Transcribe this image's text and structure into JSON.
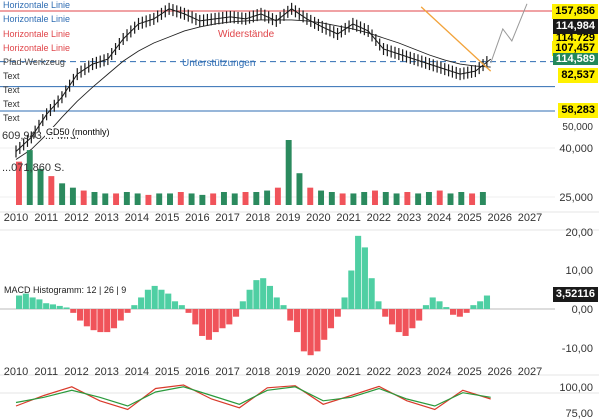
{
  "colors": {
    "accent_red": "#e0454a",
    "accent_blue": "#2f6db3",
    "hist_pos": "#4fcfa3",
    "hist_neg": "#f0535a",
    "trend_orange": "#f2a33b",
    "price_tag_yellow": "#fff100",
    "price_tag_dark": "#1a1a1a",
    "price_tag_green": "#23885a"
  },
  "drawing_tools": {
    "items": [
      {
        "label": "Horizontale Linie",
        "color": "#2f6db3"
      },
      {
        "label": "Horizontale Linie",
        "color": "#2f6db3"
      },
      {
        "label": "Horizontale Linie",
        "color": "#e0454a"
      },
      {
        "label": "Horizontale Linie",
        "color": "#e0454a"
      },
      {
        "label": "Pfad-Werkzeug",
        "color": "#444444"
      },
      {
        "label": "Text",
        "color": "#333333"
      },
      {
        "label": "Text",
        "color": "#333333"
      },
      {
        "label": "Text",
        "color": "#333333"
      },
      {
        "label": "Text",
        "color": "#333333"
      }
    ]
  },
  "annotations": {
    "resistance": "Widerstände",
    "support": "Unterstützungen"
  },
  "indicators": {
    "gd50": "GD50 (monthly)",
    "volume_top": "609,943 ... Mrd.",
    "volume_mid": "...071,860 S.",
    "macd": "MACD Histogramm: 12 | 26 | 9"
  },
  "price_tags": [
    {
      "value": "157,856",
      "level": 157.856,
      "bg": "#fff100",
      "fg": "#000000"
    },
    {
      "value": "114,984",
      "level": 114.984,
      "bg": "#1a1a1a",
      "fg": "#ffffff"
    },
    {
      "value": "114,729",
      "level": 114.729,
      "bg": "#fff100",
      "fg": "#000000"
    },
    {
      "value": "107,457",
      "level": 107.457,
      "bg": "#fff100",
      "fg": "#000000"
    },
    {
      "value": "114,589",
      "level": 114.589,
      "bg": "#23885a",
      "fg": "#ffffff"
    },
    {
      "value": "82,537",
      "level": 82.537,
      "bg": "#fff100",
      "fg": "#000000"
    },
    {
      "value": "58,283",
      "level": 58.283,
      "bg": "#fff100",
      "fg": "#000000"
    }
  ],
  "macd_tag": {
    "value": "3,52116",
    "bg": "#1a1a1a",
    "fg": "#ffffff"
  },
  "chart_data": [
    {
      "type": "line",
      "title": "",
      "xlabel": "",
      "ylabel": "",
      "x_ticks": [
        "2010",
        "2011",
        "2012",
        "2013",
        "2014",
        "2015",
        "2016",
        "2017",
        "2018",
        "2019",
        "2020",
        "2021",
        "2022",
        "2023",
        "2024",
        "2025",
        "2026",
        "2027"
      ],
      "y_ticks": [
        "50,000"
      ],
      "horizontal_lines": [
        157.856,
        107.457,
        82.537,
        58.283
      ],
      "series": [
        {
          "values": [
            18,
            32,
            55,
            72,
            95,
            105,
            110,
            130,
            145,
            150,
            160,
            155,
            148,
            150,
            152,
            150,
            155,
            148,
            160,
            150,
            142,
            135,
            145,
            138,
            120,
            115,
            110,
            105,
            100,
            95,
            98,
            110
          ]
        },
        {
          "name": "GD50 (monthly)",
          "values": [
            10,
            20,
            35,
            52,
            68,
            82,
            95,
            108,
            118,
            126,
            132,
            138,
            142,
            145,
            147,
            148,
            149,
            149,
            149,
            148,
            146,
            143,
            140,
            136,
            131,
            126,
            120,
            114,
            109,
            105,
            103,
            102
          ]
        }
      ]
    },
    {
      "type": "bar",
      "title": "",
      "x_ticks": [
        "2010",
        "2011",
        "2012",
        "2013",
        "2014",
        "2015",
        "2016",
        "2017",
        "2018",
        "2019",
        "2020",
        "2021",
        "2022",
        "2023",
        "2024",
        "2025",
        "2026",
        "2027"
      ],
      "y_ticks": [
        "40,000",
        "25,000"
      ],
      "values": [
        30,
        38,
        25,
        20,
        15,
        12,
        10,
        9,
        8,
        8,
        9,
        8,
        7,
        8,
        8,
        9,
        8,
        7,
        8,
        9,
        8,
        9,
        9,
        10,
        12,
        45,
        22,
        12,
        10,
        9,
        8,
        8,
        9,
        10,
        9,
        8,
        9,
        8,
        9,
        10,
        8,
        9,
        8,
        9
      ]
    },
    {
      "type": "bar",
      "title": "MACD Histogramm: 12 | 26 | 9",
      "x_ticks": [
        "2010",
        "2011",
        "2012",
        "2013",
        "2014",
        "2015",
        "2016",
        "2017",
        "2018",
        "2019",
        "2020",
        "2021",
        "2022",
        "2023",
        "2024",
        "2025",
        "2026",
        "2027"
      ],
      "y_ticks": [
        "20,00",
        "10,00",
        "0,00",
        "-10,00"
      ],
      "ylim": [
        -12.5,
        20
      ],
      "values": [
        3.5,
        4,
        3,
        2.5,
        1.5,
        1.2,
        0.8,
        0.4,
        -1,
        -3,
        -4.5,
        -5.5,
        -6,
        -6,
        -5,
        -3,
        -1,
        1,
        3,
        5,
        6,
        5,
        4,
        2,
        1,
        -1,
        -4,
        -7,
        -8,
        -6,
        -5,
        -4,
        -2,
        2,
        5,
        7.5,
        8,
        6,
        3,
        1,
        -3,
        -6,
        -11,
        -12,
        -11,
        -8,
        -5,
        -2,
        3,
        10,
        19,
        16,
        8,
        2,
        -2,
        -4,
        -6,
        -7,
        -5,
        -3,
        1,
        3,
        2,
        0.5,
        -1.5,
        -2,
        -1,
        1,
        2,
        3.5
      ]
    },
    {
      "type": "line",
      "title": "",
      "y_ticks": [
        "100,00",
        "75,00"
      ],
      "series": [
        {
          "values": [
            40,
            70,
            95,
            55,
            30,
            90,
            100,
            60,
            35,
            92,
            98,
            45,
            70,
            96,
            55,
            30,
            85,
            60
          ]
        },
        {
          "values": [
            50,
            65,
            85,
            65,
            40,
            80,
            95,
            70,
            45,
            85,
            95,
            55,
            65,
            90,
            60,
            40,
            78,
            65
          ]
        }
      ]
    }
  ]
}
